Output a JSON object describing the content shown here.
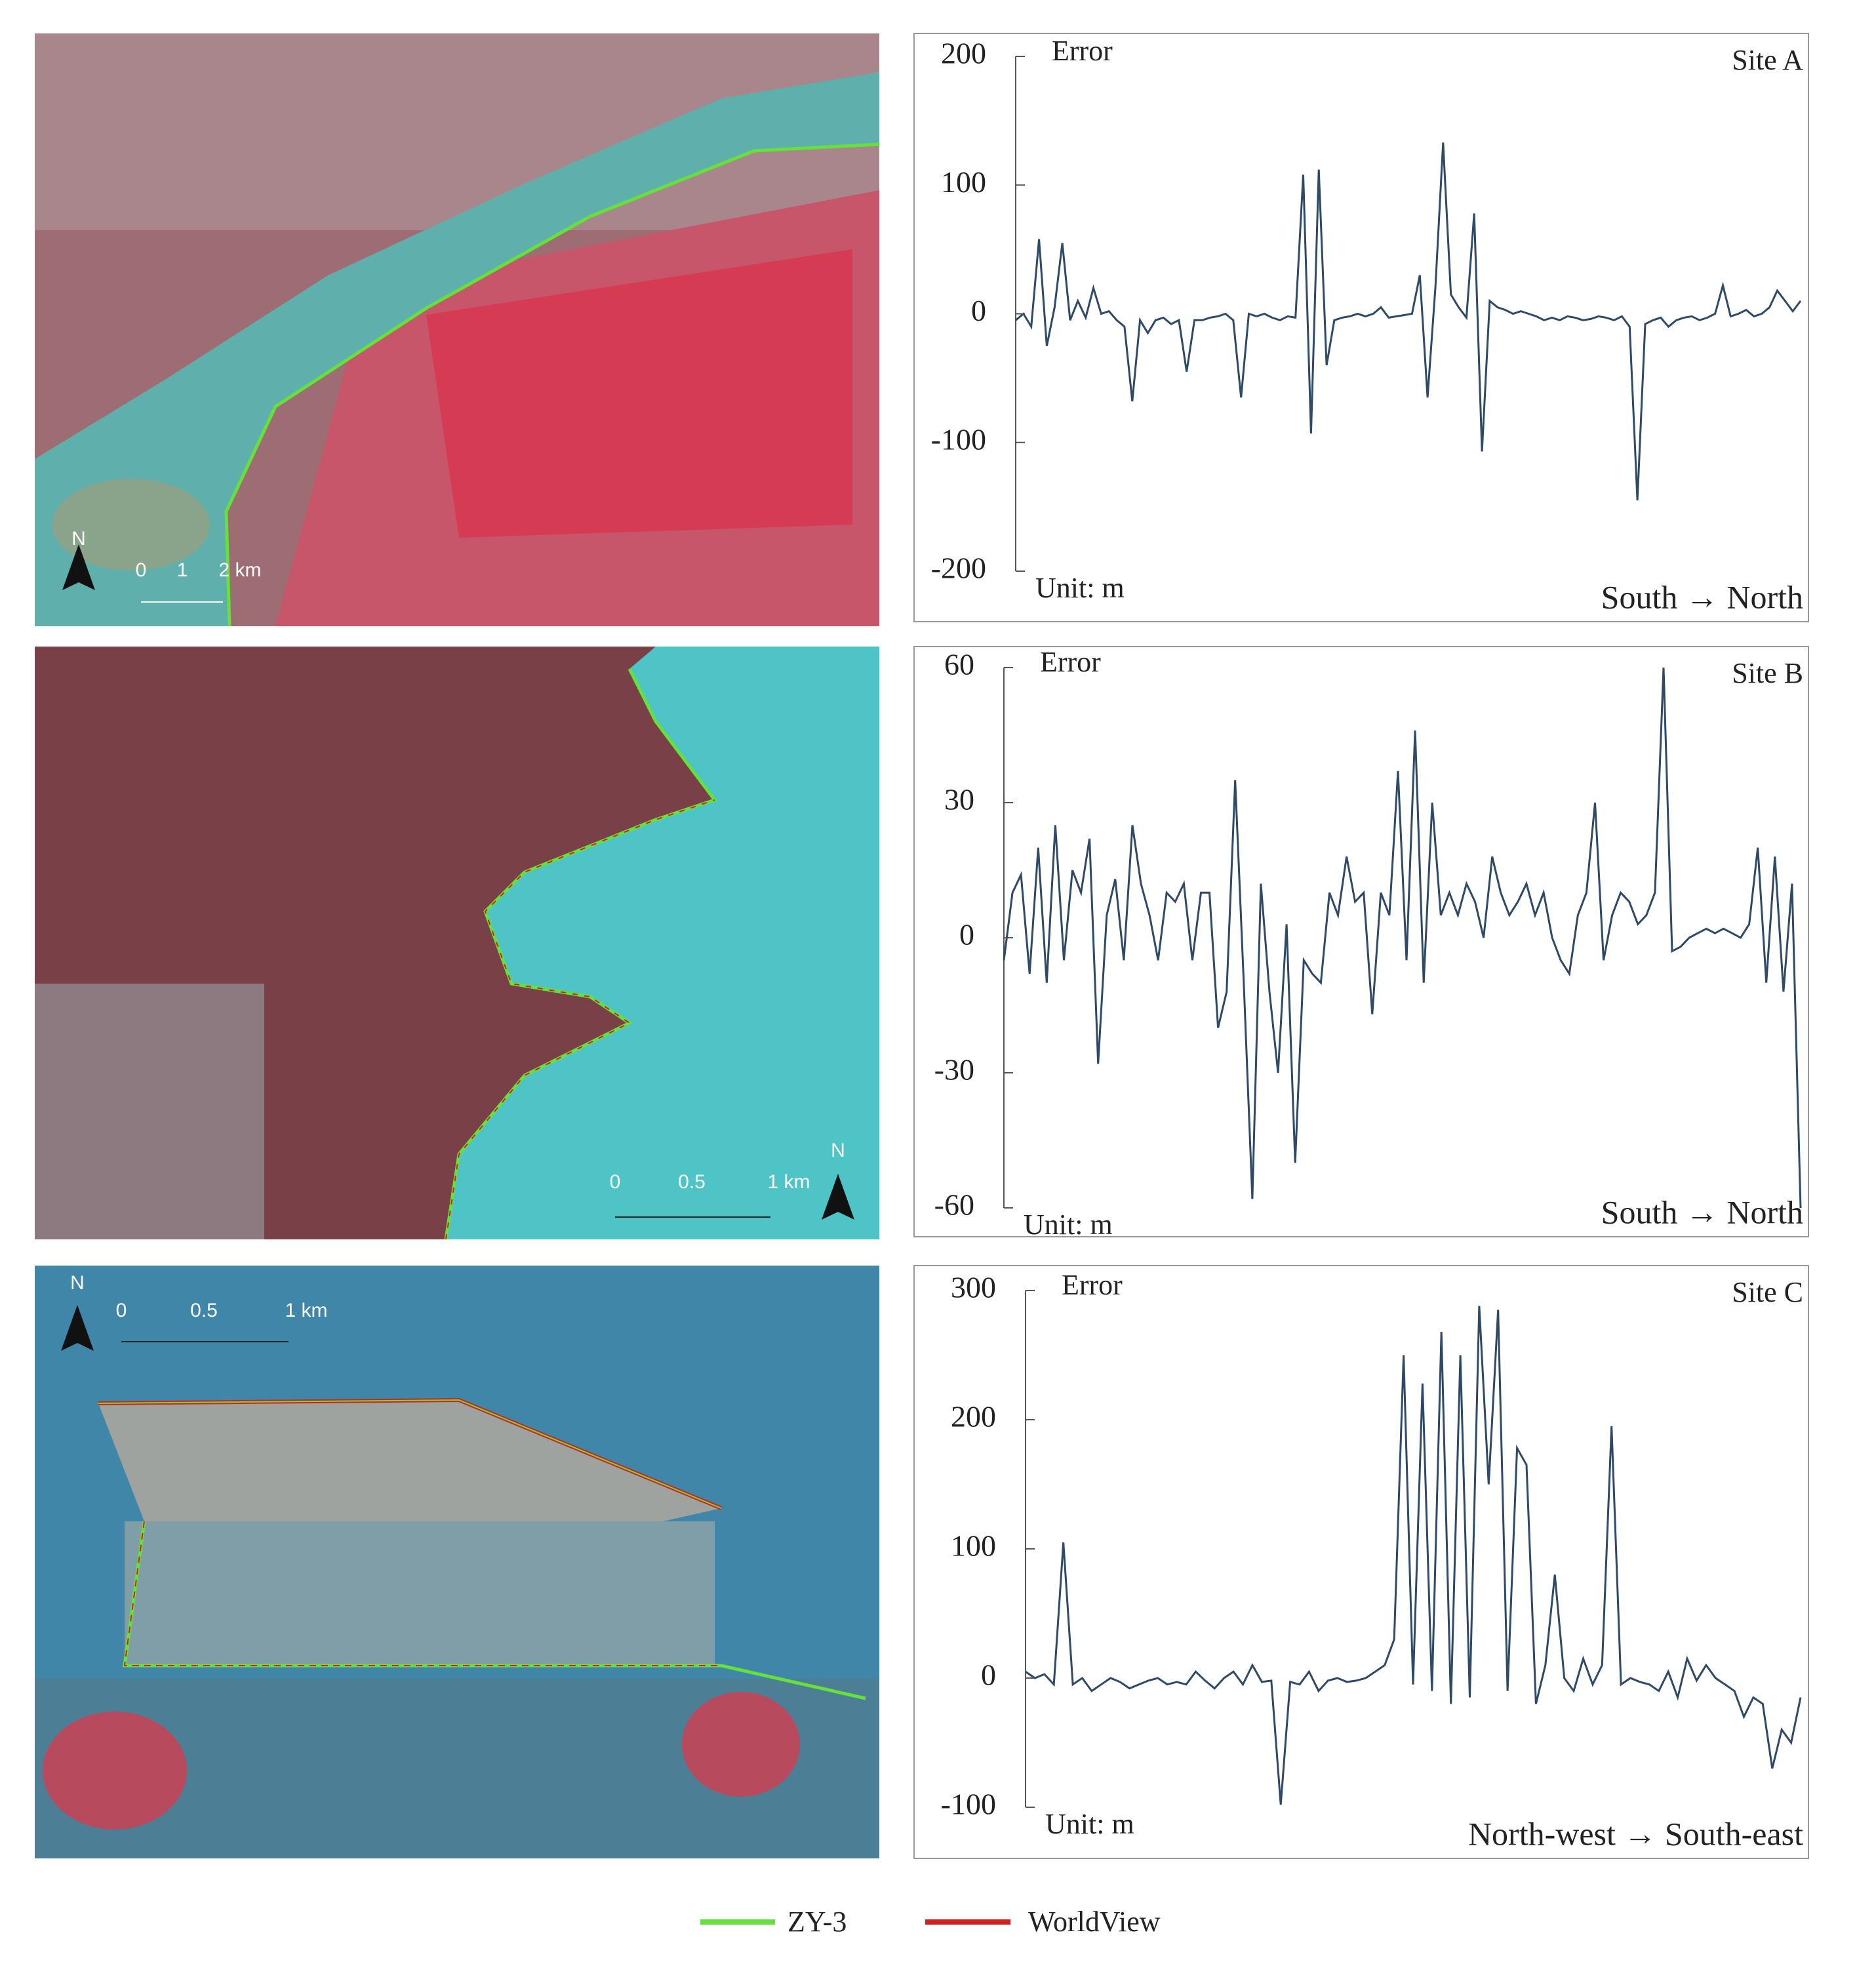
{
  "chart_data": [
    {
      "type": "line",
      "ylabel": "Error",
      "annotation": "Site A",
      "unit": "Unit: m",
      "xlabel": "South → North",
      "ylim": [
        -200,
        200
      ],
      "yticks": [
        200,
        100,
        0,
        -100,
        -200
      ],
      "series": [
        {
          "color": "#2e4a66",
          "values": [
            -5,
            0,
            -10,
            58,
            -25,
            5,
            55,
            -5,
            10,
            -3,
            20,
            0,
            2,
            -5,
            -10,
            -68,
            -5,
            -15,
            -5,
            -3,
            -8,
            -5,
            -45,
            -5,
            -5,
            -3,
            -2,
            0,
            -5,
            -65,
            0,
            -2,
            0,
            -3,
            -5,
            -2,
            -3,
            108,
            -93,
            112,
            -40,
            -5,
            -3,
            -2,
            0,
            -2,
            0,
            5,
            -3,
            -2,
            -1,
            0,
            30,
            -65,
            20,
            133,
            15,
            5,
            -3,
            78,
            -107,
            10,
            5,
            3,
            0,
            2,
            0,
            -2,
            -5,
            -3,
            -5,
            -2,
            -3,
            -5,
            -4,
            -2,
            -3,
            -5,
            -2,
            -10,
            -145,
            -8,
            -5,
            -3,
            -10,
            -5,
            -3,
            -2,
            -5,
            -3,
            0,
            22,
            -2,
            0,
            3,
            -2,
            0,
            5,
            18,
            10,
            2,
            10
          ]
        }
      ]
    },
    {
      "type": "line",
      "ylabel": "Error",
      "annotation": "Site B",
      "unit": "Unit: m",
      "xlabel": "South → North",
      "ylim": [
        -60,
        60
      ],
      "yticks": [
        60,
        30,
        0,
        -30,
        -60
      ],
      "series": [
        {
          "color": "#2e4a66",
          "values": [
            -5,
            10,
            14,
            -8,
            20,
            -10,
            25,
            -5,
            15,
            10,
            22,
            -28,
            5,
            13,
            -5,
            25,
            12,
            5,
            -5,
            10,
            8,
            12,
            -5,
            10,
            10,
            -20,
            -12,
            35,
            -10,
            -58,
            12,
            -12,
            -30,
            3,
            -50,
            -5,
            -8,
            -10,
            10,
            5,
            18,
            8,
            10,
            -17,
            10,
            5,
            37,
            -5,
            46,
            -10,
            30,
            5,
            10,
            5,
            12,
            8,
            0,
            18,
            10,
            5,
            8,
            12,
            5,
            10,
            0,
            -5,
            -8,
            5,
            10,
            30,
            -5,
            5,
            10,
            8,
            3,
            5,
            10,
            60,
            -3,
            -2,
            0,
            1,
            2,
            1,
            2,
            1,
            0,
            3,
            20,
            -10,
            18,
            -12,
            12,
            -60
          ]
        }
      ]
    },
    {
      "type": "line",
      "ylabel": "Error",
      "annotation": "Site C",
      "unit": "Unit: m",
      "xlabel": "North-west → South-east",
      "ylim": [
        -100,
        300
      ],
      "yticks": [
        300,
        200,
        100,
        0,
        -100
      ],
      "series": [
        {
          "color": "#2e4a66",
          "values": [
            5,
            0,
            3,
            -5,
            105,
            -5,
            0,
            -10,
            -5,
            0,
            -3,
            -8,
            -5,
            -2,
            0,
            -5,
            -3,
            -5,
            5,
            -2,
            -8,
            0,
            5,
            -5,
            10,
            -3,
            -2,
            -98,
            -3,
            -5,
            5,
            -10,
            -2,
            0,
            -3,
            -2,
            0,
            5,
            10,
            30,
            250,
            -5,
            228,
            -10,
            268,
            -20,
            250,
            -15,
            288,
            150,
            285,
            -10,
            178,
            165,
            -20,
            10,
            80,
            0,
            -10,
            15,
            -5,
            10,
            195,
            -5,
            0,
            -3,
            -5,
            -10,
            5,
            -15,
            15,
            -2,
            10,
            0,
            -5,
            -10,
            -30,
            -15,
            -20,
            -70,
            -40,
            -50,
            -15
          ]
        }
      ]
    }
  ],
  "maps": [
    {
      "north": "N",
      "scale_labels": [
        "0",
        "1",
        "2 km"
      ]
    },
    {
      "north": "N",
      "scale_labels": [
        "0",
        "0.5",
        "1 km"
      ]
    },
    {
      "north": "N",
      "scale_labels": [
        "0",
        "0.5",
        "1 km"
      ]
    }
  ],
  "legend": [
    {
      "name": "ZY-3",
      "color": "#66e03a"
    },
    {
      "name": "WorldView",
      "color": "#d42020"
    }
  ]
}
